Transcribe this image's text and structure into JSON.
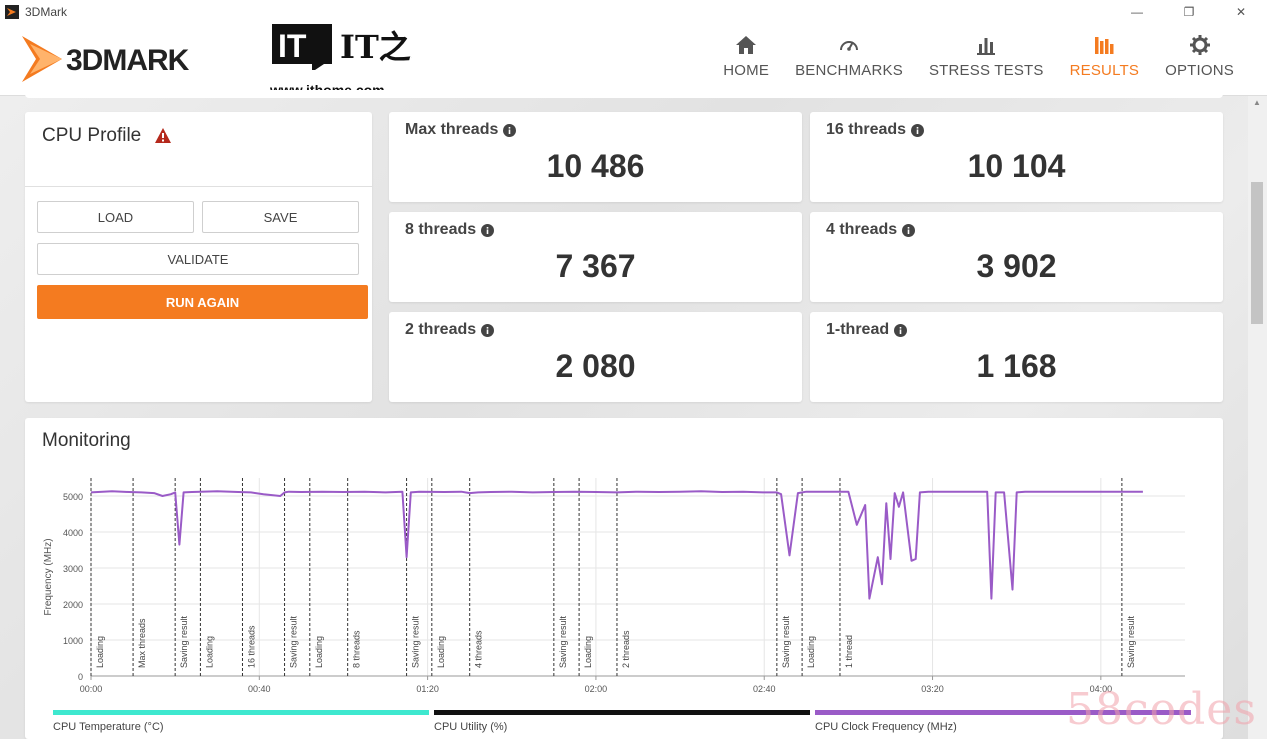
{
  "window": {
    "title": "3DMark",
    "controls": [
      "—",
      "❐",
      "✕"
    ]
  },
  "brand": {
    "logo_text": "3DMARK",
    "watermark_site": "www.ithome.com",
    "watermark_logo": "IT之家"
  },
  "nav": {
    "items": [
      {
        "label": "HOME",
        "icon": "home-icon",
        "active": false
      },
      {
        "label": "BENCHMARKS",
        "icon": "gauge-icon",
        "active": false
      },
      {
        "label": "STRESS TESTS",
        "icon": "bars-icon",
        "active": false
      },
      {
        "label": "RESULTS",
        "icon": "results-icon",
        "active": true
      },
      {
        "label": "OPTIONS",
        "icon": "gear-icon",
        "active": false
      }
    ],
    "accent_color": "#f47b20"
  },
  "profile": {
    "title": "CPU Profile",
    "warning_icon": "warning-icon",
    "load_label": "LOAD",
    "save_label": "SAVE",
    "validate_label": "VALIDATE",
    "run_again_label": "RUN AGAIN"
  },
  "scores": [
    {
      "label": "Max threads",
      "value": "10 486"
    },
    {
      "label": "16 threads",
      "value": "10 104"
    },
    {
      "label": "8 threads",
      "value": "7 367"
    },
    {
      "label": "4 threads",
      "value": "3 902"
    },
    {
      "label": "2 threads",
      "value": "2 080"
    },
    {
      "label": "1-thread",
      "value": "1 168"
    }
  ],
  "monitoring": {
    "title": "Monitoring",
    "legend": [
      {
        "label": "CPU Temperature (°C)",
        "color": "#3ee8cf"
      },
      {
        "label": "CPU Utility (%)",
        "color": "#111111"
      },
      {
        "label": "CPU Clock Frequency (MHz)",
        "color": "#9a5bc7"
      }
    ]
  },
  "chart_data": {
    "type": "line",
    "title": "",
    "ylabel": "Frequency (MHz)",
    "xlabel": "",
    "ylim": [
      0,
      5500
    ],
    "xlim": [
      0,
      260
    ],
    "yticks": [
      0,
      1000,
      2000,
      3000,
      4000,
      5000
    ],
    "xticks": [
      {
        "value": 0,
        "label": "00:00"
      },
      {
        "value": 40,
        "label": "00:40"
      },
      {
        "value": 80,
        "label": "01:20"
      },
      {
        "value": 120,
        "label": "02:00"
      },
      {
        "value": 160,
        "label": "02:40"
      },
      {
        "value": 200,
        "label": "03:20"
      },
      {
        "value": 240,
        "label": "04:00"
      }
    ],
    "grid": true,
    "phases": [
      {
        "x": 0,
        "label": "Loading"
      },
      {
        "x": 10,
        "label": "Max threads"
      },
      {
        "x": 20,
        "label": "Saving result"
      },
      {
        "x": 26,
        "label": "Loading"
      },
      {
        "x": 36,
        "label": "16 threads"
      },
      {
        "x": 46,
        "label": "Saving result"
      },
      {
        "x": 52,
        "label": "Loading"
      },
      {
        "x": 61,
        "label": "8 threads"
      },
      {
        "x": 75,
        "label": "Saving result"
      },
      {
        "x": 81,
        "label": "Loading"
      },
      {
        "x": 90,
        "label": "4 threads"
      },
      {
        "x": 110,
        "label": "Saving result"
      },
      {
        "x": 116,
        "label": "Loading"
      },
      {
        "x": 125,
        "label": "2 threads"
      },
      {
        "x": 163,
        "label": "Saving result"
      },
      {
        "x": 169,
        "label": "Loading"
      },
      {
        "x": 178,
        "label": "1 thread"
      },
      {
        "x": 245,
        "label": "Saving result"
      }
    ],
    "series": [
      {
        "name": "CPU Clock Frequency (MHz)",
        "color": "#9a5bc7",
        "x": [
          0,
          5,
          9,
          12,
          15,
          17,
          19,
          20,
          21,
          22,
          24,
          30,
          35,
          38,
          41,
          45,
          46,
          47,
          50,
          55,
          60,
          65,
          70,
          74,
          75,
          76,
          78,
          84,
          88,
          90,
          92,
          95,
          100,
          105,
          110,
          115,
          120,
          125,
          130,
          135,
          140,
          145,
          150,
          155,
          160,
          163,
          164,
          166,
          168,
          170,
          174,
          178,
          180,
          182,
          184,
          185,
          187,
          188,
          189,
          190,
          191,
          192,
          193,
          195,
          196,
          197,
          199,
          202,
          210,
          213,
          214,
          215,
          217,
          219,
          220,
          222,
          230,
          240,
          250
        ],
        "y": [
          5100,
          5130,
          5110,
          5100,
          5080,
          5000,
          5050,
          5100,
          3650,
          5100,
          5110,
          5130,
          5110,
          5100,
          5050,
          5000,
          5100,
          5120,
          5110,
          5120,
          5110,
          5120,
          5100,
          5120,
          3300,
          5100,
          5120,
          5110,
          5120,
          5080,
          5100,
          5110,
          5120,
          5100,
          5110,
          5120,
          5110,
          5100,
          5120,
          5110,
          5120,
          5130,
          5110,
          5120,
          5100,
          5100,
          5050,
          3350,
          5080,
          5120,
          5120,
          5120,
          5120,
          4200,
          4750,
          2150,
          3300,
          2550,
          4800,
          3250,
          5080,
          4700,
          5100,
          3200,
          3250,
          5100,
          5120,
          5120,
          5120,
          5120,
          2150,
          5100,
          5100,
          2400,
          5100,
          5120,
          5120,
          5120,
          5120
        ]
      }
    ]
  }
}
